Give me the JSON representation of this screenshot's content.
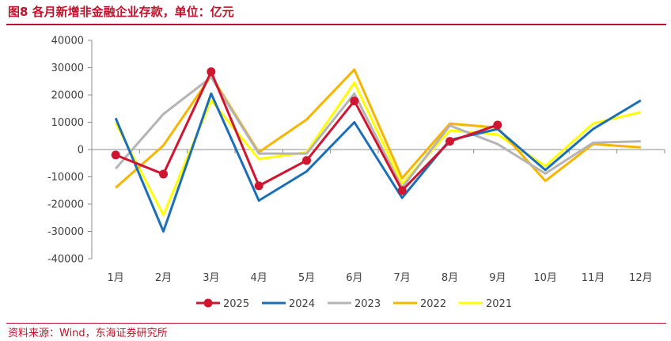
{
  "title": "图8  各月新增非金融企业存款，单位：亿元",
  "source": "资料来源：Wind，东海证券研究所",
  "chart_data": {
    "type": "line",
    "categories": [
      "1月",
      "2月",
      "3月",
      "4月",
      "5月",
      "6月",
      "7月",
      "8月",
      "9月",
      "10月",
      "11月",
      "12月"
    ],
    "ylim": [
      -40000,
      40000
    ],
    "yticks": [
      40000,
      30000,
      20000,
      10000,
      0,
      -10000,
      -20000,
      -30000,
      -40000
    ],
    "ytick_labels": [
      "40000",
      "30000",
      "20000",
      "10000",
      "0",
      "-10000",
      "-20000",
      "-30000",
      "-40000"
    ],
    "grid": false,
    "legend": "bottom",
    "series": [
      {
        "name": "2025",
        "color": "#d01530",
        "markers": true,
        "values": [
          -2000,
          -9000,
          28500,
          -13300,
          -4000,
          17800,
          -15000,
          3000,
          9000,
          null,
          null,
          null
        ]
      },
      {
        "name": "2024",
        "color": "#1a6fb8",
        "markers": false,
        "values": [
          11500,
          -30000,
          20500,
          -18700,
          -8000,
          10000,
          -17700,
          3500,
          7500,
          -7500,
          7500,
          18000
        ]
      },
      {
        "name": "2023",
        "color": "#b4b4b4",
        "markers": false,
        "values": [
          -7000,
          13000,
          26500,
          -1500,
          -1500,
          20500,
          -14000,
          8800,
          2000,
          -8800,
          2500,
          3000
        ]
      },
      {
        "name": "2022",
        "color": "#f7b500",
        "markers": false,
        "values": [
          -14000,
          1500,
          27000,
          -1000,
          11000,
          29300,
          -10500,
          9500,
          8000,
          -11500,
          2000,
          800
        ]
      },
      {
        "name": "2021",
        "color": "#ffff00",
        "markers": false,
        "values": [
          9800,
          -24000,
          18000,
          -3500,
          -1000,
          24500,
          -12500,
          7000,
          5500,
          -6000,
          9500,
          13700
        ]
      }
    ]
  }
}
